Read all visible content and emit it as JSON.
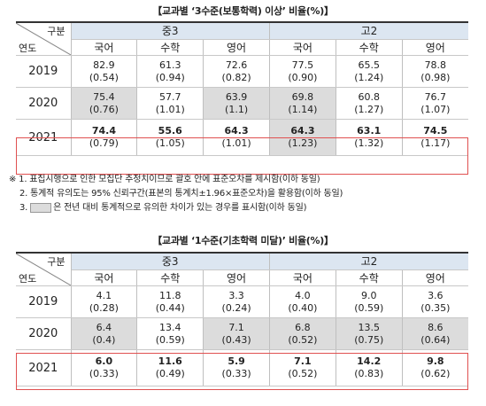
{
  "table1": {
    "title": "【교과별 ‘3수준(보통학력) 이상’ 비율(%)】",
    "corner_top": "구분",
    "corner_bottom": "연도",
    "groups": [
      "중3",
      "고2"
    ],
    "subjects": [
      "국어",
      "수학",
      "영어",
      "국어",
      "수학",
      "영어"
    ],
    "rows": [
      {
        "year": "2019",
        "cells": [
          {
            "v": "82.9",
            "se": "(0.54)",
            "shade": false
          },
          {
            "v": "61.3",
            "se": "(0.94)",
            "shade": false
          },
          {
            "v": "72.6",
            "se": "(0.82)",
            "shade": false
          },
          {
            "v": "77.5",
            "se": "(0.90)",
            "shade": false
          },
          {
            "v": "65.5",
            "se": "(1.24)",
            "shade": false
          },
          {
            "v": "78.8",
            "se": "(0.98)",
            "shade": false
          }
        ]
      },
      {
        "year": "2020",
        "cells": [
          {
            "v": "75.4",
            "se": "(0.76)",
            "shade": true
          },
          {
            "v": "57.7",
            "se": "(1.01)",
            "shade": false
          },
          {
            "v": "63.9",
            "se": "(1.1)",
            "shade": true
          },
          {
            "v": "69.8",
            "se": "(1.14)",
            "shade": true
          },
          {
            "v": "60.8",
            "se": "(1.27)",
            "shade": false
          },
          {
            "v": "76.7",
            "se": "(1.07)",
            "shade": false
          }
        ]
      },
      {
        "year": "2021",
        "cells": [
          {
            "v": "74.4",
            "se": "(0.79)",
            "shade": false
          },
          {
            "v": "55.6",
            "se": "(1.05)",
            "shade": false
          },
          {
            "v": "64.3",
            "se": "(1.01)",
            "shade": false
          },
          {
            "v": "64.3",
            "se": "(1.23)",
            "shade": true
          },
          {
            "v": "63.1",
            "se": "(1.32)",
            "shade": false
          },
          {
            "v": "74.5",
            "se": "(1.17)",
            "shade": false
          }
        ]
      }
    ]
  },
  "notes": {
    "n1": "※ 1. 표집시행으로 인한 모집단 추정치이므로 괄호 안에 표준오차를 제시함(이하 동일)",
    "n2": "2. 통계적 유의도는 95% 신뢰구간(표본의 통계치±1.96×표준오차)을 활용함(이하 동일)",
    "n3_prefix": "3.",
    "n3_text": "은 전년 대비 통계적으로 유의한 차이가 있는 경우를 표시함(이하 동일)"
  },
  "table2": {
    "title": "【교과별 ‘1수준(기초학력 미달)’ 비율(%)】",
    "corner_top": "구분",
    "corner_bottom": "연도",
    "groups": [
      "중3",
      "고2"
    ],
    "subjects": [
      "국어",
      "수학",
      "영어",
      "국어",
      "수학",
      "영어"
    ],
    "rows": [
      {
        "year": "2019",
        "cells": [
          {
            "v": "4.1",
            "se": "(0.28)",
            "shade": false
          },
          {
            "v": "11.8",
            "se": "(0.44)",
            "shade": false
          },
          {
            "v": "3.3",
            "se": "(0.24)",
            "shade": false
          },
          {
            "v": "4.0",
            "se": "(0.40)",
            "shade": false
          },
          {
            "v": "9.0",
            "se": "(0.59)",
            "shade": false
          },
          {
            "v": "3.6",
            "se": "(0.35)",
            "shade": false
          }
        ]
      },
      {
        "year": "2020",
        "cells": [
          {
            "v": "6.4",
            "se": "(0.4)",
            "shade": true
          },
          {
            "v": "13.4",
            "se": "(0.59)",
            "shade": false
          },
          {
            "v": "7.1",
            "se": "(0.43)",
            "shade": true
          },
          {
            "v": "6.8",
            "se": "(0.52)",
            "shade": true
          },
          {
            "v": "13.5",
            "se": "(0.75)",
            "shade": true
          },
          {
            "v": "8.6",
            "se": "(0.64)",
            "shade": true
          }
        ]
      },
      {
        "year": "2021",
        "cells": [
          {
            "v": "6.0",
            "se": "(0.33)",
            "shade": false
          },
          {
            "v": "11.6",
            "se": "(0.49)",
            "shade": false
          },
          {
            "v": "5.9",
            "se": "(0.33)",
            "shade": false
          },
          {
            "v": "7.1",
            "se": "(0.52)",
            "shade": false
          },
          {
            "v": "14.2",
            "se": "(0.83)",
            "shade": false
          },
          {
            "v": "9.8",
            "se": "(0.62)",
            "shade": false
          }
        ]
      }
    ]
  },
  "colors": {
    "header_fill": "#dce6f1",
    "significant_shade": "#dcdcdc",
    "highlight_border": "#e05050"
  }
}
